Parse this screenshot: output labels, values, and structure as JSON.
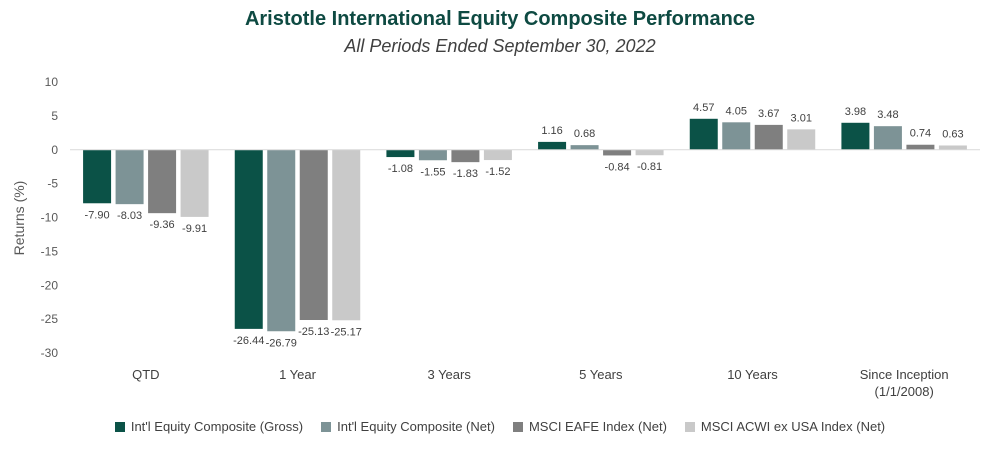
{
  "title": "Aristotle International Equity Composite Performance",
  "subtitle": "All Periods Ended September 30, 2022",
  "chart_data": {
    "type": "bar",
    "ylabel": "Returns (%)",
    "xlabel": "",
    "ylim": [
      -30,
      10
    ],
    "yticks": [
      10,
      5,
      0,
      -5,
      -10,
      -15,
      -20,
      -25,
      -30
    ],
    "grid": false,
    "legend_position": "bottom",
    "categories": [
      [
        "QTD"
      ],
      [
        "1 Year"
      ],
      [
        "3 Years"
      ],
      [
        "5 Years"
      ],
      [
        "10 Years"
      ],
      [
        "Since Inception",
        "(1/1/2008)"
      ]
    ],
    "series": [
      {
        "name": "Int'l Equity Composite (Gross)",
        "color": "#0b5247",
        "values": [
          -7.9,
          -26.44,
          -1.08,
          1.16,
          4.57,
          3.98
        ],
        "labels": [
          "-7.90",
          "-26.44",
          "-1.08",
          "1.16",
          "4.57",
          "3.98"
        ]
      },
      {
        "name": "Int'l Equity Composite (Net)",
        "color": "#7d9396",
        "values": [
          -8.03,
          -26.79,
          -1.55,
          0.68,
          4.05,
          3.48
        ],
        "labels": [
          "-8.03",
          "-26.79",
          "-1.55",
          "0.68",
          "4.05",
          "3.48"
        ]
      },
      {
        "name": "MSCI EAFE Index (Net)",
        "color": "#7f7f7f",
        "values": [
          -9.36,
          -25.13,
          -1.83,
          -0.84,
          3.67,
          0.74
        ],
        "labels": [
          "-9.36",
          "-25.13",
          "-1.83",
          "-0.84",
          "3.67",
          "0.74"
        ]
      },
      {
        "name": "MSCI ACWI ex USA Index (Net)",
        "color": "#c9c9c9",
        "values": [
          -9.91,
          -25.17,
          -1.52,
          -0.81,
          3.01,
          0.63
        ],
        "labels": [
          "-9.91",
          "-25.17",
          "-1.52",
          "-0.81",
          "3.01",
          "0.63"
        ]
      }
    ]
  }
}
